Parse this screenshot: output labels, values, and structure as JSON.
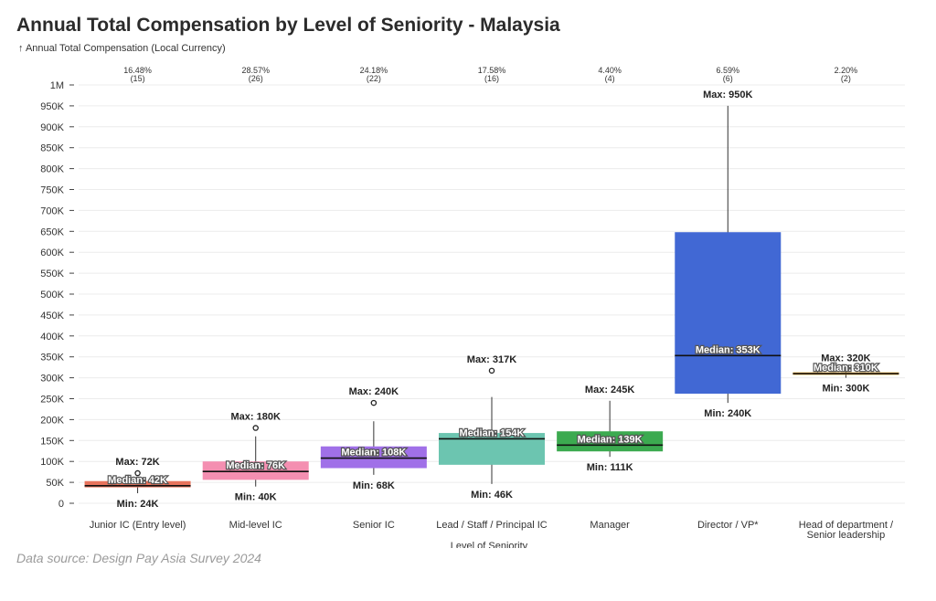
{
  "chart_data": {
    "type": "boxplot",
    "title": "Annual Total Compensation by Level of Seniority - Malaysia",
    "ylabel": "↑ Annual Total Compensation (Local Currency)",
    "xlabel": "Level of Seniority",
    "source": "Data source: Design Pay Asia Survey 2024",
    "ylim": [
      0,
      1000000
    ],
    "yticks": [
      0,
      50000,
      100000,
      150000,
      200000,
      250000,
      300000,
      350000,
      400000,
      450000,
      500000,
      550000,
      600000,
      650000,
      700000,
      750000,
      800000,
      850000,
      900000,
      950000,
      1000000
    ],
    "ytick_labels": [
      "0",
      "50K",
      "100K",
      "150K",
      "200K",
      "250K",
      "300K",
      "350K",
      "400K",
      "450K",
      "500K",
      "550K",
      "600K",
      "650K",
      "700K",
      "750K",
      "800K",
      "850K",
      "900K",
      "950K",
      "1M"
    ],
    "grid": true,
    "categories": [
      {
        "label_lines": [
          "Junior IC (Entry level)"
        ],
        "pct": "16.48%",
        "count": "(15)",
        "color": "#e8735c",
        "min": 24000,
        "q1": 38000,
        "median": 42000,
        "q3": 53000,
        "whisker_high": 55000,
        "max": 72000,
        "outliers": [
          72000
        ],
        "max_label": "Max: 72K",
        "median_label": "Median: 42K",
        "min_label": "Min: 24K"
      },
      {
        "label_lines": [
          "Mid-level IC"
        ],
        "pct": "28.57%",
        "count": "(26)",
        "color": "#f48fb1",
        "min": 40000,
        "q1": 56000,
        "median": 76000,
        "q3": 100000,
        "whisker_high": 160000,
        "max": 180000,
        "outliers": [
          180000
        ],
        "max_label": "Max: 180K",
        "median_label": "Median: 76K",
        "min_label": "Min: 40K"
      },
      {
        "label_lines": [
          "Senior IC"
        ],
        "pct": "24.18%",
        "count": "(22)",
        "color": "#a070e8",
        "min": 68000,
        "q1": 84000,
        "median": 108000,
        "q3": 136000,
        "whisker_high": 196000,
        "max": 240000,
        "outliers": [
          240000
        ],
        "max_label": "Max: 240K",
        "median_label": "Median: 108K",
        "min_label": "Min: 68K"
      },
      {
        "label_lines": [
          "Lead / Staff / Principal IC"
        ],
        "pct": "17.58%",
        "count": "(16)",
        "color": "#6cc5b0",
        "min": 46000,
        "q1": 92000,
        "median": 154000,
        "q3": 168000,
        "whisker_high": 254000,
        "max": 317000,
        "outliers": [
          317000
        ],
        "max_label": "Max: 317K",
        "median_label": "Median: 154K",
        "min_label": "Min: 46K"
      },
      {
        "label_lines": [
          "Manager"
        ],
        "pct": "4.40%",
        "count": "(4)",
        "color": "#3caa50",
        "min": 111000,
        "q1": 124000,
        "median": 139000,
        "q3": 172000,
        "whisker_high": 245000,
        "max": 245000,
        "outliers": [],
        "max_label": "Max: 245K",
        "median_label": "Median: 139K",
        "min_label": "Min: 111K"
      },
      {
        "label_lines": [
          "Director / VP*"
        ],
        "pct": "6.59%",
        "count": "(6)",
        "color": "#4168d4",
        "min": 240000,
        "q1": 262000,
        "median": 353000,
        "q3": 648000,
        "whisker_high": 950000,
        "max": 950000,
        "outliers": [],
        "max_label": "Max: 950K",
        "median_label": "Median: 353K",
        "min_label": "Min: 240K"
      },
      {
        "label_lines": [
          "Head of department /",
          "Senior leadership"
        ],
        "pct": "2.20%",
        "count": "(2)",
        "color": "#f2b134",
        "min": 300000,
        "q1": 307000,
        "median": 310000,
        "q3": 313000,
        "whisker_high": 320000,
        "max": 320000,
        "outliers": [],
        "max_label": "Max: 320K",
        "median_label": "Median: 310K",
        "min_label": "Min: 300K"
      }
    ]
  }
}
